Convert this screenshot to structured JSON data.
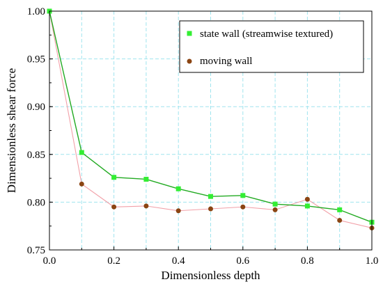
{
  "chart_data": {
    "type": "line",
    "xlabel": "Dimensionless depth",
    "ylabel": "Dimensionless shear force",
    "xlim": [
      0.0,
      1.0
    ],
    "ylim": [
      0.75,
      1.0
    ],
    "xticks": [
      "0.0",
      "0.2",
      "0.4",
      "0.6",
      "0.8",
      "1.0"
    ],
    "yticks": [
      "0.75",
      "0.80",
      "0.85",
      "0.90",
      "0.95",
      "1.00"
    ],
    "grid": true,
    "legend_position": "top-right",
    "x": [
      0.0,
      0.1,
      0.2,
      0.3,
      0.4,
      0.5,
      0.6,
      0.7,
      0.8,
      0.9,
      1.0
    ],
    "series": [
      {
        "name": "state wall (streamwise textured)",
        "marker": "square",
        "line_color": "#22aa22",
        "marker_color": "#33ee33",
        "values": [
          1.0,
          0.852,
          0.826,
          0.824,
          0.814,
          0.806,
          0.807,
          0.798,
          0.796,
          0.792,
          0.779
        ]
      },
      {
        "name": "moving wall",
        "marker": "circle",
        "line_color": "#f2a0a8",
        "marker_color": "#8b4513",
        "values": [
          1.0,
          0.819,
          0.795,
          0.796,
          0.791,
          0.793,
          0.795,
          0.792,
          0.803,
          0.781,
          0.773
        ]
      }
    ]
  }
}
